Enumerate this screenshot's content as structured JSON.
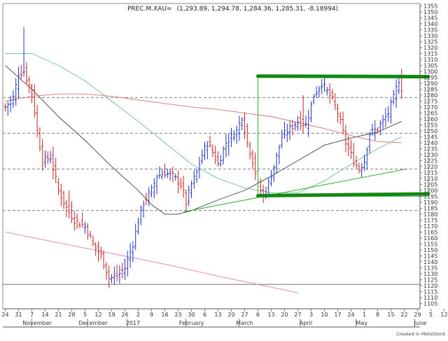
{
  "header": {
    "symbol": "PREC.M.XAU=",
    "values": "(1,293.89, 1,294.78, 1,284.36, 1,285.31, -8.18994)"
  },
  "credit": "Created in MetaStock",
  "chart_data": {
    "type": "candlestick",
    "title": "",
    "ylim": [
      1100,
      1357
    ],
    "y_ticks": [
      1105,
      1110,
      1115,
      1120,
      1125,
      1130,
      1135,
      1140,
      1145,
      1150,
      1155,
      1160,
      1165,
      1170,
      1175,
      1180,
      1185,
      1190,
      1195,
      1200,
      1205,
      1210,
      1215,
      1220,
      1225,
      1230,
      1235,
      1240,
      1245,
      1250,
      1255,
      1260,
      1265,
      1270,
      1275,
      1280,
      1285,
      1290,
      1295,
      1300,
      1305,
      1310,
      1315,
      1320,
      1325,
      1330,
      1335,
      1340,
      1345,
      1350,
      1355
    ],
    "x_ticks": [
      {
        "label": "24",
        "bar": 0
      },
      {
        "label": "31",
        "bar": 5
      },
      {
        "label": "7",
        "bar": 10
      },
      {
        "label": "14",
        "bar": 15
      },
      {
        "label": "21",
        "bar": 20
      },
      {
        "label": "28",
        "bar": 25
      },
      {
        "label": "5",
        "bar": 30
      },
      {
        "label": "12",
        "bar": 35
      },
      {
        "label": "19",
        "bar": 40
      },
      {
        "label": "26",
        "bar": 45
      },
      {
        "label": "2",
        "bar": 50
      },
      {
        "label": "9",
        "bar": 55
      },
      {
        "label": "16",
        "bar": 60
      },
      {
        "label": "23",
        "bar": 65
      },
      {
        "label": "30",
        "bar": 70
      },
      {
        "label": "6",
        "bar": 75
      },
      {
        "label": "13",
        "bar": 80
      },
      {
        "label": "20",
        "bar": 85
      },
      {
        "label": "27",
        "bar": 90
      },
      {
        "label": "6",
        "bar": 95
      },
      {
        "label": "13",
        "bar": 100
      },
      {
        "label": "20",
        "bar": 105
      },
      {
        "label": "27",
        "bar": 110
      },
      {
        "label": "3",
        "bar": 115
      },
      {
        "label": "10",
        "bar": 120
      },
      {
        "label": "17",
        "bar": 125
      },
      {
        "label": "24",
        "bar": 130
      },
      {
        "label": "1",
        "bar": 135
      },
      {
        "label": "8",
        "bar": 140
      },
      {
        "label": "15",
        "bar": 145
      },
      {
        "label": "22",
        "bar": 150
      },
      {
        "label": "29",
        "bar": 155
      },
      {
        "label": "5",
        "bar": 160
      },
      {
        "label": "12",
        "bar": 165
      }
    ],
    "months": [
      {
        "label": "November",
        "bar": 12
      },
      {
        "label": "December",
        "bar": 33
      },
      {
        "label": "2017",
        "bar": 48
      },
      {
        "label": "February",
        "bar": 70
      },
      {
        "label": "March",
        "bar": 90
      },
      {
        "label": "April",
        "bar": 113
      },
      {
        "label": "May",
        "bar": 134
      },
      {
        "label": "June",
        "bar": 156
      }
    ],
    "anchors": [
      [
        0,
        1270
      ],
      [
        3,
        1278
      ],
      [
        5,
        1298
      ],
      [
        7,
        1300
      ],
      [
        9,
        1288
      ],
      [
        10,
        1282
      ],
      [
        12,
        1250
      ],
      [
        14,
        1225
      ],
      [
        17,
        1228
      ],
      [
        20,
        1200
      ],
      [
        23,
        1185
      ],
      [
        26,
        1175
      ],
      [
        30,
        1170
      ],
      [
        33,
        1155
      ],
      [
        36,
        1145
      ],
      [
        39,
        1126
      ],
      [
        42,
        1128
      ],
      [
        45,
        1135
      ],
      [
        48,
        1155
      ],
      [
        50,
        1175
      ],
      [
        52,
        1190
      ],
      [
        55,
        1200
      ],
      [
        57,
        1212
      ],
      [
        60,
        1215
      ],
      [
        63,
        1212
      ],
      [
        66,
        1205
      ],
      [
        68,
        1190
      ],
      [
        70,
        1205
      ],
      [
        72,
        1215
      ],
      [
        74,
        1230
      ],
      [
        76,
        1240
      ],
      [
        78,
        1232
      ],
      [
        80,
        1222
      ],
      [
        83,
        1240
      ],
      [
        85,
        1245
      ],
      [
        87,
        1250
      ],
      [
        89,
        1262
      ],
      [
        91,
        1240
      ],
      [
        93,
        1225
      ],
      [
        95,
        1205
      ],
      [
        97,
        1196
      ],
      [
        99,
        1206
      ],
      [
        101,
        1220
      ],
      [
        104,
        1245
      ],
      [
        107,
        1252
      ],
      [
        110,
        1258
      ],
      [
        113,
        1255
      ],
      [
        116,
        1280
      ],
      [
        119,
        1290
      ],
      [
        121,
        1283
      ],
      [
        123,
        1276
      ],
      [
        125,
        1265
      ],
      [
        128,
        1240
      ],
      [
        131,
        1225
      ],
      [
        133,
        1218
      ],
      [
        135,
        1225
      ],
      [
        137,
        1248
      ],
      [
        140,
        1252
      ],
      [
        142,
        1258
      ],
      [
        144,
        1265
      ],
      [
        146,
        1278
      ],
      [
        148,
        1293
      ],
      [
        149,
        1286
      ]
    ],
    "spikes": [
      [
        7,
        1337
      ],
      [
        24,
        1200
      ],
      [
        40,
        1122
      ],
      [
        112,
        1280
      ]
    ],
    "moving_averages": [
      {
        "color": "#444444",
        "points": [
          [
            0,
            1305
          ],
          [
            10,
            1285
          ],
          [
            20,
            1262
          ],
          [
            30,
            1242
          ],
          [
            40,
            1220
          ],
          [
            50,
            1200
          ],
          [
            55,
            1188
          ],
          [
            60,
            1180
          ],
          [
            65,
            1180
          ],
          [
            70,
            1183
          ],
          [
            80,
            1192
          ],
          [
            90,
            1200
          ],
          [
            100,
            1212
          ],
          [
            110,
            1225
          ],
          [
            120,
            1238
          ],
          [
            130,
            1244
          ],
          [
            140,
            1249
          ],
          [
            149,
            1258
          ]
        ]
      },
      {
        "color": "#66c488",
        "points": [
          [
            0,
            1315
          ],
          [
            10,
            1315
          ],
          [
            20,
            1305
          ],
          [
            30,
            1292
          ],
          [
            40,
            1275
          ],
          [
            50,
            1258
          ],
          [
            60,
            1240
          ],
          [
            70,
            1222
          ],
          [
            80,
            1210
          ],
          [
            90,
            1202
          ],
          [
            100,
            1198
          ],
          [
            110,
            1198
          ],
          [
            120,
            1208
          ],
          [
            130,
            1222
          ],
          [
            140,
            1235
          ],
          [
            149,
            1245
          ]
        ]
      },
      {
        "color": "#e07070",
        "points": [
          [
            0,
            1275
          ],
          [
            10,
            1279
          ],
          [
            20,
            1281
          ],
          [
            30,
            1281
          ],
          [
            40,
            1279
          ],
          [
            50,
            1276
          ],
          [
            60,
            1273
          ],
          [
            70,
            1270
          ],
          [
            80,
            1268
          ],
          [
            90,
            1265
          ],
          [
            100,
            1262
          ],
          [
            110,
            1257
          ],
          [
            120,
            1252
          ],
          [
            130,
            1246
          ],
          [
            140,
            1241
          ],
          [
            149,
            1240
          ]
        ]
      },
      {
        "color": "#e080b0",
        "points": [
          [
            0,
            1165
          ],
          [
            20,
            1156
          ],
          [
            40,
            1147
          ],
          [
            60,
            1138
          ],
          [
            80,
            1128
          ],
          [
            95,
            1121
          ],
          [
            110,
            1114
          ]
        ]
      }
    ],
    "dashed_levels": [
      1278,
      1248,
      1218,
      1183
    ],
    "solid_level": 1121,
    "channel": {
      "left_bar": 95,
      "right_bar": 159,
      "top": 1296,
      "bottom": 1195
    },
    "trendlines": [
      {
        "color": "#33aa33",
        "from": [
          67,
          1182
        ],
        "to": [
          151,
          1218
        ]
      },
      {
        "color": "#33aa33",
        "from": [
          95,
          1296
        ],
        "to": [
          95,
          1195
        ]
      }
    ],
    "thick_lines": [
      {
        "color": "#118811",
        "from": [
          95,
          1296
        ],
        "to": [
          159,
          1295.5
        ]
      },
      {
        "color": "#118811",
        "from": [
          95,
          1195.5
        ],
        "to": [
          159,
          1197
        ]
      }
    ]
  }
}
